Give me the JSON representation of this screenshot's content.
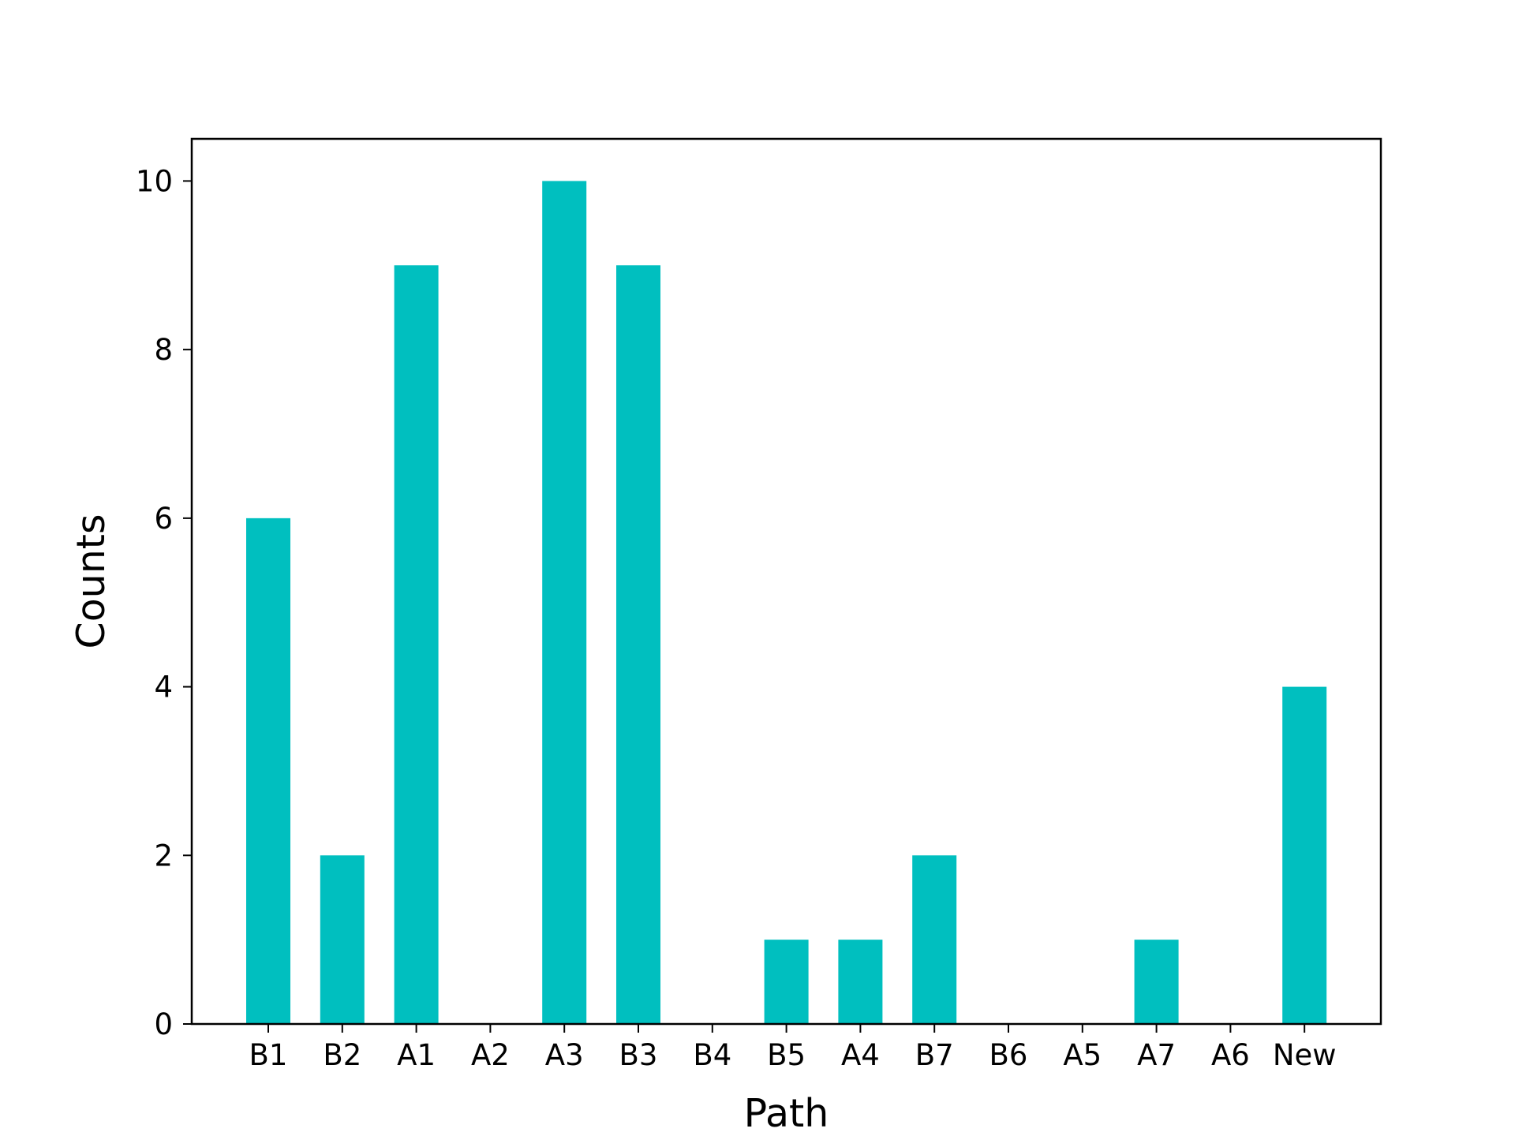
{
  "chart_data": {
    "type": "bar",
    "title": "",
    "xlabel": "Path",
    "ylabel": "Counts",
    "categories": [
      "B1",
      "B2",
      "A1",
      "A2",
      "A3",
      "B3",
      "B4",
      "B5",
      "A4",
      "B7",
      "B6",
      "A5",
      "A7",
      "A6",
      "New"
    ],
    "values": [
      6,
      2,
      9,
      0,
      10,
      9,
      0,
      1,
      1,
      2,
      0,
      0,
      1,
      0,
      4
    ],
    "ylim": [
      0,
      10.5
    ],
    "yticks": [
      0,
      2,
      4,
      6,
      8,
      10
    ],
    "grid": false,
    "bar_color": "#00bfbf"
  }
}
